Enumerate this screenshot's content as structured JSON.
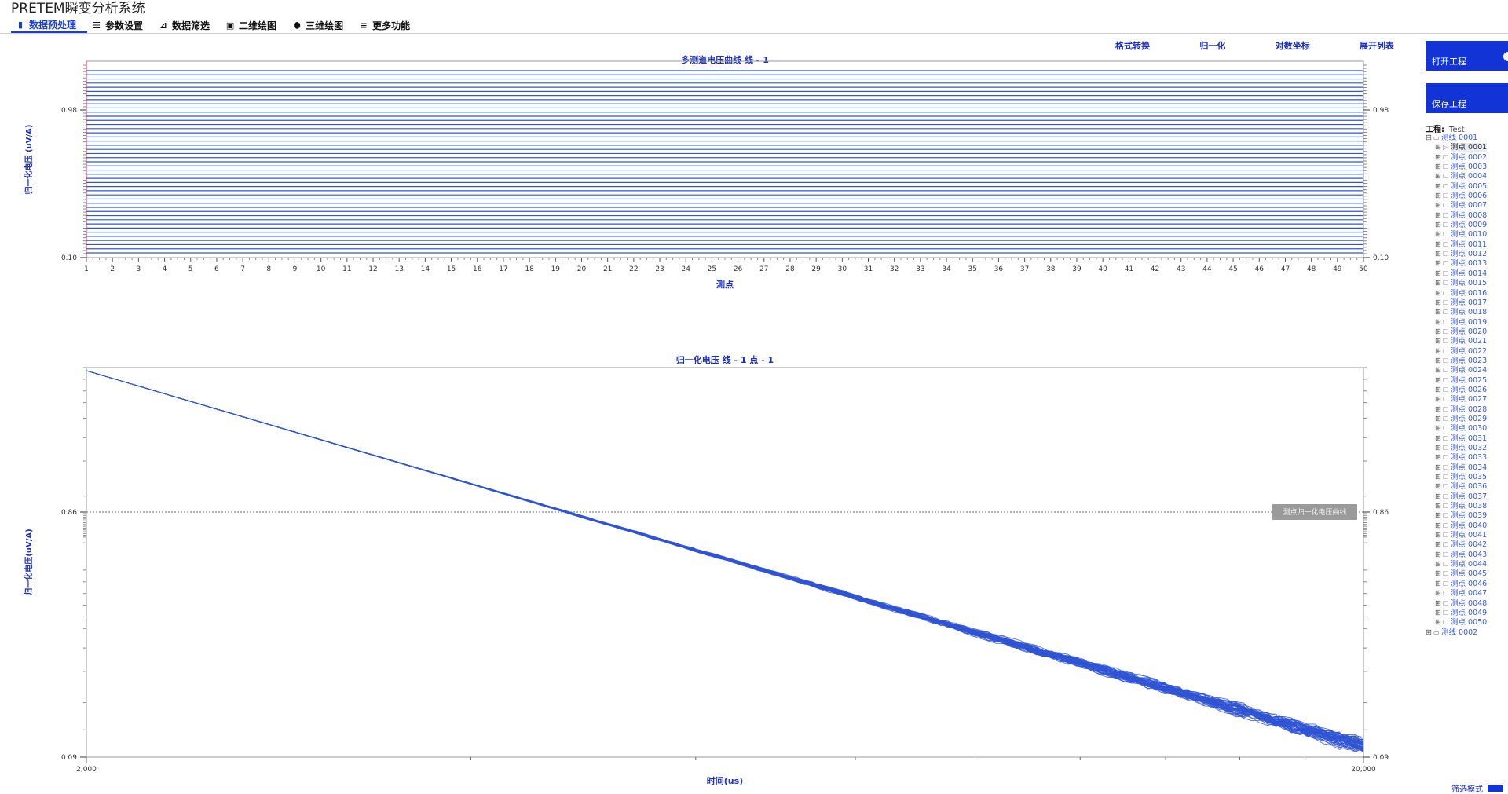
{
  "app": {
    "title": "PRETEM瞬变分析系统"
  },
  "menu": {
    "items": [
      {
        "label": "数据预处理",
        "icon": "bar-chart-icon",
        "active": true
      },
      {
        "label": "参数设置",
        "icon": "sliders-icon",
        "active": false
      },
      {
        "label": "数据筛选",
        "icon": "line-chart-icon",
        "active": false
      },
      {
        "label": "二维绘图",
        "icon": "image-icon",
        "active": false
      },
      {
        "label": "三维绘图",
        "icon": "cube-icon",
        "active": false
      },
      {
        "label": "更多功能",
        "icon": "menu-icon",
        "active": false
      }
    ]
  },
  "toolbar": {
    "format_convert": "格式转换",
    "normalize": "归一化",
    "log_coords": "对数坐标",
    "expand_list": "展开列表"
  },
  "colors": {
    "accent": "#1234d6",
    "series": "#2f55d4",
    "axis_label": "#1c2fc0"
  },
  "chart_data": [
    {
      "type": "line",
      "title": "多测道电压曲线 线 - 1",
      "xlabel": "测点",
      "ylabel": "归一化电压 (uV/A)",
      "x_ticks": [
        "1",
        "2",
        "3",
        "4",
        "5",
        "6",
        "7",
        "8",
        "9",
        "10",
        "11",
        "12",
        "13",
        "14",
        "15",
        "16",
        "17",
        "18",
        "19",
        "20",
        "21",
        "22",
        "23",
        "24",
        "25",
        "26",
        "27",
        "28",
        "29",
        "30",
        "31",
        "32",
        "33",
        "34",
        "35",
        "36",
        "37",
        "38",
        "39",
        "40",
        "41",
        "42",
        "43",
        "44",
        "45",
        "46",
        "47",
        "48",
        "49",
        "50"
      ],
      "xlim": [
        1,
        50
      ],
      "y_tick_labels": [
        "0.98",
        "0.10"
      ],
      "y_tick_labels_right": [
        "0.98",
        "0.10"
      ],
      "series_count": 45,
      "note_trend": "flat channels"
    },
    {
      "type": "line",
      "title": "归一化电压 线 - 1  点 - 1",
      "xlabel": "时间(us)",
      "ylabel": "归一化电压(uV/A)",
      "x_tick_labels": [
        "2,000",
        "20,000"
      ],
      "xlim": [
        2000,
        20000
      ],
      "xscale": "log",
      "y_tick_labels": [
        "0.86",
        "0.09"
      ],
      "y_tick_labels_right": [
        "0.86",
        "0.09"
      ],
      "series_count": 50,
      "hline_value": 0.86,
      "tooltip": "测点归一化电压曲线"
    }
  ],
  "side": {
    "open_project": "打开工程",
    "save_project": "保存工程",
    "project_label": "工程:",
    "project_name": "Test",
    "tree": {
      "line1": "测线 0001",
      "points": [
        "测点 0001",
        "测点 0002",
        "测点 0003",
        "测点 0004",
        "测点 0005",
        "测点 0006",
        "测点 0007",
        "测点 0008",
        "测点 0009",
        "测点 0010",
        "测点 0011",
        "测点 0012",
        "测点 0013",
        "测点 0014",
        "测点 0015",
        "测点 0016",
        "测点 0017",
        "测点 0018",
        "测点 0019",
        "测点 0020",
        "测点 0021",
        "测点 0022",
        "测点 0023",
        "测点 0024",
        "测点 0025",
        "测点 0026",
        "测点 0027",
        "测点 0028",
        "测点 0029",
        "测点 0030",
        "测点 0031",
        "测点 0032",
        "测点 0033",
        "测点 0034",
        "测点 0035",
        "测点 0036",
        "测点 0037",
        "测点 0038",
        "测点 0039",
        "测点 0040",
        "测点 0041",
        "测点 0042",
        "测点 0043",
        "测点 0044",
        "测点 0045",
        "测点 0046",
        "测点 0047",
        "测点 0048",
        "测点 0049",
        "测点 0050"
      ],
      "line2": "测线 0002"
    },
    "filter_mode": "筛选模式"
  }
}
